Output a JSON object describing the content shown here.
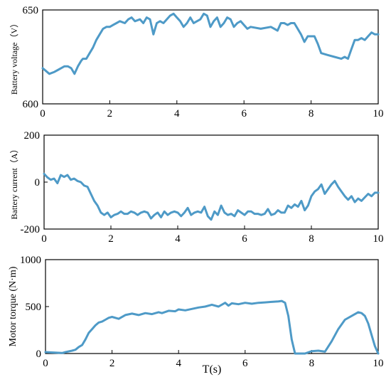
{
  "colors": {
    "series": "#4e9ac7",
    "axis": "#000000"
  },
  "chart_data": [
    {
      "type": "line",
      "ylabel": "Battery voltage（V）",
      "xlim": [
        0,
        10
      ],
      "ylim": [
        600,
        650
      ],
      "xticks": [
        0,
        2,
        4,
        6,
        8,
        10
      ],
      "yticks": [
        600,
        650
      ],
      "x": [
        0,
        0.2,
        0.35,
        0.45,
        0.55,
        0.65,
        0.75,
        0.85,
        0.95,
        1.0,
        1.05,
        1.15,
        1.2,
        1.3,
        1.4,
        1.5,
        1.6,
        1.7,
        1.8,
        1.9,
        2.0,
        2.1,
        2.2,
        2.3,
        2.45,
        2.55,
        2.65,
        2.75,
        2.9,
        3.0,
        3.1,
        3.2,
        3.3,
        3.4,
        3.5,
        3.6,
        3.7,
        3.8,
        3.9,
        4.0,
        4.1,
        4.2,
        4.3,
        4.4,
        4.5,
        4.6,
        4.7,
        4.8,
        4.9,
        5.0,
        5.1,
        5.2,
        5.3,
        5.4,
        5.5,
        5.6,
        5.7,
        5.8,
        5.9,
        6.0,
        6.1,
        6.2,
        6.5,
        6.8,
        7.0,
        7.1,
        7.2,
        7.3,
        7.4,
        7.5,
        7.6,
        7.7,
        7.8,
        7.9,
        8.0,
        8.1,
        8.2,
        8.3,
        8.5,
        8.7,
        8.9,
        9.0,
        9.1,
        9.2,
        9.3,
        9.4,
        9.5,
        9.6,
        9.7,
        9.8,
        9.9,
        10.0
      ],
      "values": [
        619,
        616,
        617,
        618,
        619,
        620,
        620,
        619,
        616,
        618,
        620,
        623,
        624,
        624,
        627,
        630,
        634,
        637,
        640,
        641,
        641,
        642,
        643,
        644,
        643,
        645,
        646,
        644,
        645,
        643,
        646,
        645,
        637,
        643,
        644,
        643,
        645,
        647,
        648,
        646,
        644,
        641,
        643,
        646,
        643,
        644,
        645,
        648,
        647,
        641,
        644,
        646,
        641,
        643,
        646,
        645,
        641,
        643,
        644,
        642,
        640,
        641,
        640,
        641,
        639,
        643,
        643,
        642,
        643,
        643,
        640,
        637,
        633,
        636,
        636,
        636,
        632,
        627,
        626,
        625,
        624,
        625,
        624,
        629,
        634,
        634,
        635,
        634,
        636,
        638,
        637,
        637
      ]
    },
    {
      "type": "line",
      "ylabel": "Battery current（A）",
      "xlim": [
        0,
        10
      ],
      "ylim": [
        -200,
        200
      ],
      "xticks": [
        0,
        2,
        4,
        6,
        8,
        10
      ],
      "yticks": [
        -200,
        0,
        200
      ],
      "x": [
        0,
        0.1,
        0.2,
        0.3,
        0.4,
        0.5,
        0.6,
        0.7,
        0.8,
        0.9,
        1.0,
        1.1,
        1.2,
        1.3,
        1.4,
        1.5,
        1.6,
        1.7,
        1.8,
        1.9,
        2.0,
        2.1,
        2.2,
        2.3,
        2.4,
        2.5,
        2.6,
        2.7,
        2.8,
        2.9,
        3.0,
        3.1,
        3.2,
        3.3,
        3.4,
        3.5,
        3.6,
        3.7,
        3.8,
        3.9,
        4.0,
        4.1,
        4.2,
        4.3,
        4.4,
        4.5,
        4.6,
        4.7,
        4.8,
        4.9,
        5.0,
        5.1,
        5.2,
        5.3,
        5.4,
        5.5,
        5.6,
        5.7,
        5.8,
        5.9,
        6.0,
        6.1,
        6.2,
        6.3,
        6.4,
        6.5,
        6.6,
        6.7,
        6.8,
        6.9,
        7.0,
        7.1,
        7.2,
        7.3,
        7.4,
        7.5,
        7.6,
        7.7,
        7.8,
        7.9,
        8.0,
        8.1,
        8.2,
        8.3,
        8.4,
        8.5,
        8.6,
        8.7,
        8.8,
        8.9,
        9.0,
        9.1,
        9.2,
        9.3,
        9.4,
        9.5,
        9.6,
        9.7,
        9.8,
        9.9,
        10.0
      ],
      "values": [
        35,
        20,
        10,
        15,
        -5,
        30,
        22,
        30,
        10,
        15,
        5,
        0,
        -15,
        -20,
        -50,
        -80,
        -100,
        -130,
        -140,
        -130,
        -150,
        -140,
        -135,
        -125,
        -135,
        -135,
        -125,
        -130,
        -140,
        -130,
        -125,
        -130,
        -155,
        -140,
        -130,
        -150,
        -125,
        -140,
        -130,
        -125,
        -130,
        -145,
        -130,
        -110,
        -140,
        -130,
        -125,
        -130,
        -105,
        -145,
        -160,
        -125,
        -140,
        -100,
        -130,
        -140,
        -135,
        -145,
        -120,
        -130,
        -140,
        -125,
        -125,
        -135,
        -135,
        -140,
        -135,
        -115,
        -140,
        -135,
        -120,
        -130,
        -130,
        -100,
        -110,
        -95,
        -105,
        -80,
        -120,
        -100,
        -60,
        -40,
        -30,
        -10,
        -50,
        -30,
        -10,
        5,
        -20,
        -40,
        -60,
        -75,
        -60,
        -85,
        -70,
        -80,
        -65,
        -50,
        -60,
        -45,
        -45
      ]
    },
    {
      "type": "line",
      "ylabel": "Motor torque (N·m)",
      "xlabel": "T(s)",
      "xlim": [
        0,
        10
      ],
      "ylim": [
        0,
        1000
      ],
      "xticks": [
        0,
        2,
        4,
        6,
        8,
        10
      ],
      "yticks": [
        0,
        500,
        1000
      ],
      "x": [
        0,
        0.3,
        0.5,
        0.6,
        0.8,
        0.9,
        1.0,
        1.1,
        1.2,
        1.3,
        1.4,
        1.5,
        1.6,
        1.7,
        1.8,
        1.9,
        2.0,
        2.2,
        2.4,
        2.6,
        2.8,
        3.0,
        3.2,
        3.4,
        3.5,
        3.7,
        3.9,
        4.0,
        4.2,
        4.4,
        4.6,
        4.8,
        5.0,
        5.2,
        5.4,
        5.5,
        5.6,
        5.8,
        6.0,
        6.2,
        6.4,
        6.6,
        6.8,
        7.0,
        7.1,
        7.2,
        7.3,
        7.4,
        7.5,
        7.6,
        7.8,
        8.0,
        8.2,
        8.4,
        8.6,
        8.8,
        9.0,
        9.2,
        9.4,
        9.5,
        9.6,
        9.7,
        9.8,
        9.9,
        10.0
      ],
      "values": [
        15,
        10,
        5,
        15,
        30,
        40,
        70,
        90,
        150,
        220,
        260,
        300,
        330,
        340,
        360,
        380,
        390,
        370,
        410,
        425,
        410,
        430,
        420,
        440,
        430,
        455,
        450,
        470,
        460,
        475,
        490,
        500,
        520,
        500,
        540,
        510,
        535,
        525,
        540,
        530,
        540,
        545,
        550,
        555,
        560,
        540,
        400,
        150,
        0,
        0,
        0,
        25,
        30,
        20,
        130,
        260,
        360,
        400,
        440,
        430,
        400,
        320,
        200,
        80,
        0
      ]
    }
  ]
}
